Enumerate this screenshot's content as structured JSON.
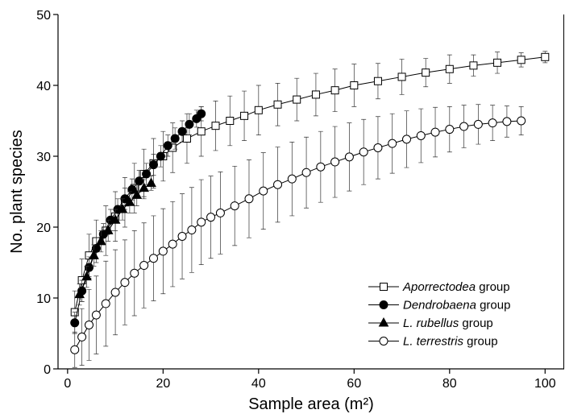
{
  "chart_data": {
    "type": "line",
    "x_label": "Sample area (m²)",
    "y_label": "No. plant species",
    "xlim": [
      -2,
      104
    ],
    "ylim": [
      0,
      50
    ],
    "xticks": [
      0,
      20,
      40,
      60,
      80,
      100
    ],
    "yticks": [
      0,
      10,
      20,
      30,
      40,
      50
    ],
    "legend": "lower right",
    "series": [
      {
        "name": "Aporrectodea group",
        "color": "#000000",
        "marker": "square",
        "fill": "#ffffff",
        "x": [
          1.5,
          3,
          4.5,
          6,
          8,
          10,
          12,
          14,
          16,
          18,
          20,
          22,
          25,
          28,
          31,
          34,
          37,
          40,
          44,
          48,
          52,
          56,
          60,
          65,
          70,
          75,
          80,
          85,
          90,
          95,
          100
        ],
        "values": [
          8,
          12.5,
          16,
          18,
          19.5,
          21.5,
          23.5,
          25.5,
          27.5,
          29,
          30,
          31.2,
          32.5,
          33.5,
          34.3,
          35,
          35.7,
          36.5,
          37.3,
          38,
          38.7,
          39.3,
          40,
          40.6,
          41.2,
          41.8,
          42.3,
          42.8,
          43.2,
          43.6,
          44
        ],
        "errors": [
          3,
          3,
          3,
          3,
          3.5,
          3.5,
          3.5,
          3.5,
          3.5,
          3.5,
          3.5,
          3.5,
          3.5,
          3.5,
          3.5,
          3.5,
          3.5,
          3.5,
          3,
          3,
          3,
          3,
          3,
          2.5,
          2.5,
          2,
          2,
          1.5,
          1.5,
          1,
          0.8
        ]
      },
      {
        "name": "Dendrobaena group",
        "color": "#000000",
        "marker": "circle",
        "fill": "#000000",
        "x": [
          1.5,
          3,
          4.5,
          6,
          7.5,
          9,
          10.5,
          12,
          13.5,
          15,
          16.5,
          18,
          19.5,
          21,
          22.5,
          24,
          25.5,
          27,
          28
        ],
        "values": [
          6.5,
          11,
          14.3,
          17,
          19,
          21,
          22.5,
          24,
          25.3,
          26.5,
          27.5,
          28.8,
          30,
          31.5,
          32.5,
          33.5,
          34.5,
          35.3,
          36
        ],
        "errors": [
          1.5,
          1.5,
          1.5,
          1.5,
          1.5,
          1.5,
          1.5,
          1.5,
          1.5,
          1.5,
          1.5,
          1.5,
          1.5,
          1.5,
          1.5,
          1.5,
          1.5,
          1.2,
          1
        ]
      },
      {
        "name": "L. rubellus group",
        "color": "#000000",
        "marker": "triangle",
        "fill": "#000000",
        "x": [
          2.5,
          4,
          5.5,
          7,
          8.5,
          10,
          11.5,
          13,
          14.5,
          16,
          17.5
        ],
        "values": [
          10.5,
          13,
          16,
          18,
          19.5,
          21,
          22.5,
          23.5,
          24.5,
          25.5,
          26.2
        ],
        "errors": [
          1.5,
          1.5,
          1.5,
          1.5,
          1.5,
          1.5,
          1.5,
          1.5,
          1.5,
          1.2,
          1
        ]
      },
      {
        "name": "L. terrestris group",
        "color": "#000000",
        "marker": "circle",
        "fill": "#ffffff",
        "x": [
          1.5,
          3,
          4.5,
          6,
          8,
          10,
          12,
          14,
          16,
          18,
          20,
          22,
          24,
          26,
          28,
          30,
          32,
          35,
          38,
          41,
          44,
          47,
          50,
          53,
          56,
          59,
          62,
          65,
          68,
          71,
          74,
          77,
          80,
          83,
          86,
          89,
          92,
          95
        ],
        "values": [
          2.7,
          4.5,
          6.2,
          7.6,
          9.2,
          10.8,
          12.2,
          13.5,
          14.6,
          15.6,
          16.6,
          17.6,
          18.7,
          19.6,
          20.7,
          21.4,
          22,
          23,
          24,
          25.1,
          26,
          26.8,
          27.7,
          28.5,
          29.2,
          29.9,
          30.6,
          31.2,
          31.8,
          32.4,
          32.9,
          33.4,
          33.8,
          34.2,
          34.5,
          34.7,
          34.9,
          35
        ],
        "errors": [
          2.5,
          4,
          5,
          5.5,
          6,
          6,
          6,
          6,
          6,
          6,
          6,
          6,
          6,
          6,
          6,
          5.8,
          5.8,
          5.6,
          5.5,
          5.4,
          5.3,
          5.2,
          5,
          5,
          5,
          4.8,
          4.6,
          4.4,
          4.2,
          4,
          3.8,
          3.5,
          3.2,
          3,
          2.8,
          2.5,
          2.2,
          2
        ]
      }
    ]
  }
}
